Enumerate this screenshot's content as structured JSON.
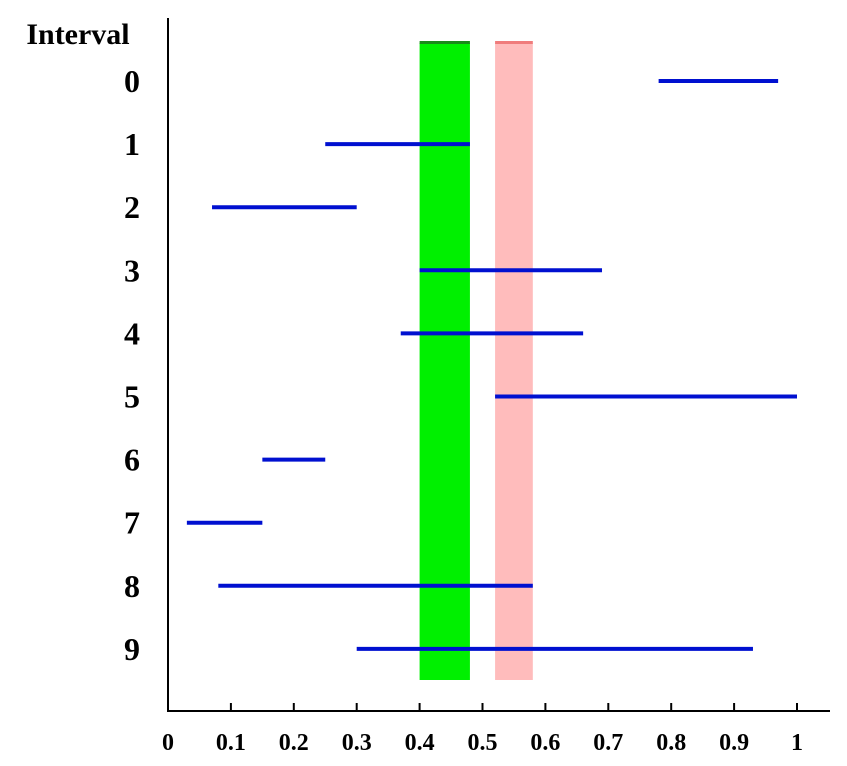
{
  "chart_data": {
    "type": "interval",
    "ylabel": "Interval",
    "xlim": [
      0,
      1
    ],
    "x_ticks": [
      "0",
      "0.1",
      "0.2",
      "0.3",
      "0.4",
      "0.5",
      "0.6",
      "0.7",
      "0.8",
      "0.9",
      "1"
    ],
    "intervals": [
      {
        "label": "0",
        "start": 0.78,
        "end": 0.97
      },
      {
        "label": "1",
        "start": 0.25,
        "end": 0.48
      },
      {
        "label": "2",
        "start": 0.07,
        "end": 0.3
      },
      {
        "label": "3",
        "start": 0.4,
        "end": 0.69
      },
      {
        "label": "4",
        "start": 0.37,
        "end": 0.66
      },
      {
        "label": "5",
        "start": 0.52,
        "end": 1.0
      },
      {
        "label": "6",
        "start": 0.15,
        "end": 0.25
      },
      {
        "label": "7",
        "start": 0.03,
        "end": 0.15
      },
      {
        "label": "8",
        "start": 0.08,
        "end": 0.58
      },
      {
        "label": "9",
        "start": 0.3,
        "end": 0.93
      }
    ],
    "highlight_bands": [
      {
        "start": 0.4,
        "end": 0.48,
        "color": "#00f000",
        "edge_color": "#1a8a1a"
      },
      {
        "start": 0.52,
        "end": 0.58,
        "color": "#ffbcbc",
        "edge_color": "#f07c7c"
      }
    ],
    "interval_color": "#0010d0",
    "grid": false
  }
}
